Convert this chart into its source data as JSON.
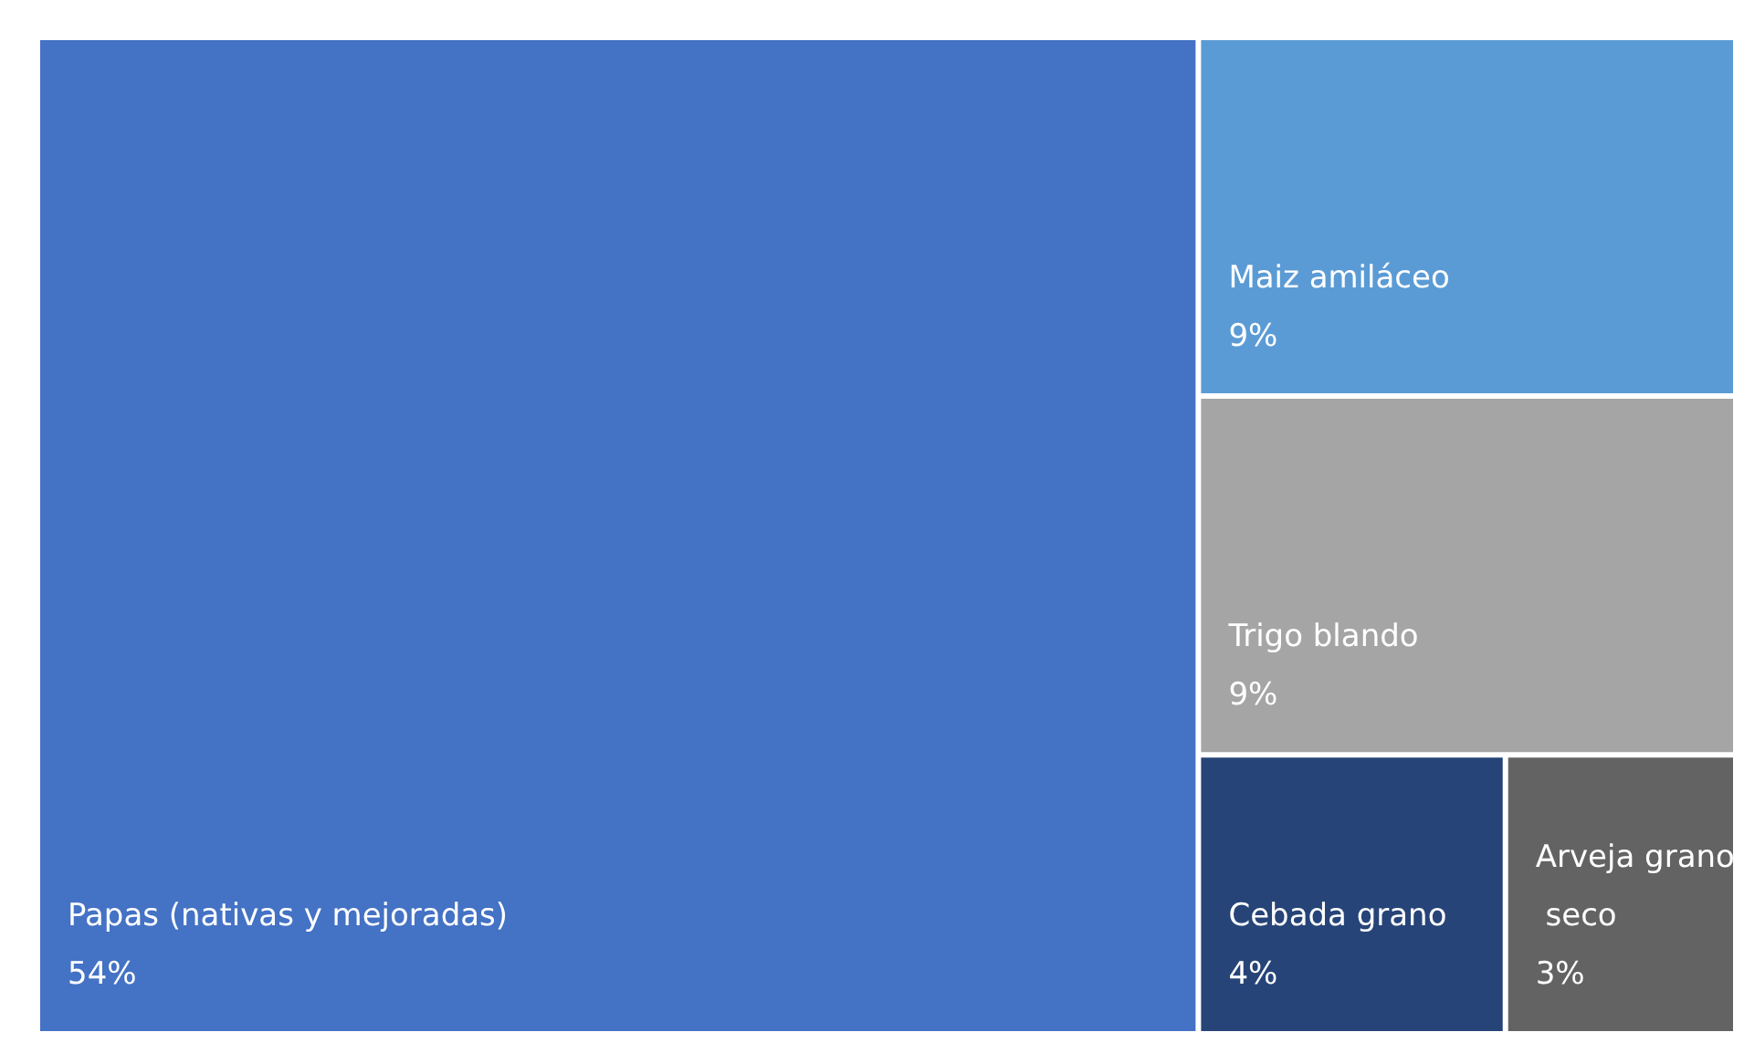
{
  "chart_data": {
    "type": "other",
    "categories": [
      "Papas (nativas y mejoradas)",
      "Trigo blando",
      "Maiz amiláceo",
      "Cebada grano",
      "Arveja grano seco"
    ],
    "values": [
      54,
      9,
      9,
      4,
      3
    ],
    "value_labels": [
      "54%",
      "9%",
      "9%",
      "4%",
      "3%"
    ],
    "colors": [
      "#4472c4",
      "#a5a5a5",
      "#5b9bd5",
      "#264478",
      "#636363"
    ]
  }
}
